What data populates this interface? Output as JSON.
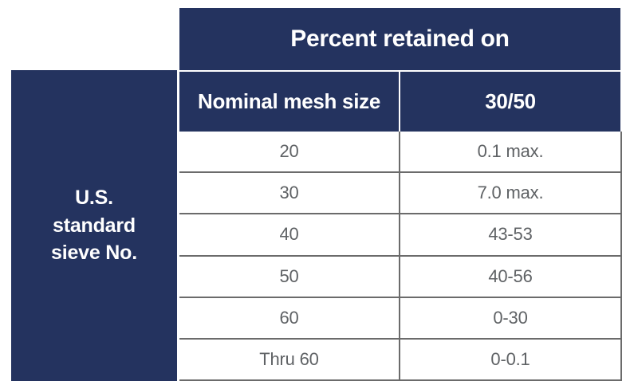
{
  "colors": {
    "navy": "#24335F",
    "grid_border": "#6B6B6B",
    "data_text": "#5F6265",
    "header_text": "#FFFFFF"
  },
  "table": {
    "top_header": "Percent retained on",
    "row_group_header": {
      "lines": [
        "U.S.",
        "standard",
        "sieve No."
      ]
    },
    "column_headers": [
      "Nominal mesh size",
      "30/50"
    ],
    "rows": [
      {
        "mesh": "20",
        "retained": "0.1 max."
      },
      {
        "mesh": "30",
        "retained": "7.0 max."
      },
      {
        "mesh": "40",
        "retained": "43-53"
      },
      {
        "mesh": "50",
        "retained": "40-56"
      },
      {
        "mesh": "60",
        "retained": "0-30"
      },
      {
        "mesh": "Thru 60",
        "retained": "0-0.1"
      }
    ]
  },
  "chart_data": {
    "type": "table",
    "title": "Percent retained on",
    "row_group_label": "U.S. standard sieve No.",
    "columns": [
      "Nominal mesh size",
      "30/50"
    ],
    "rows": [
      [
        "20",
        "0.1 max."
      ],
      [
        "30",
        "7.0 max."
      ],
      [
        "40",
        "43-53"
      ],
      [
        "50",
        "40-56"
      ],
      [
        "60",
        "0-30"
      ],
      [
        "Thru 60",
        "0-0.1"
      ]
    ]
  }
}
